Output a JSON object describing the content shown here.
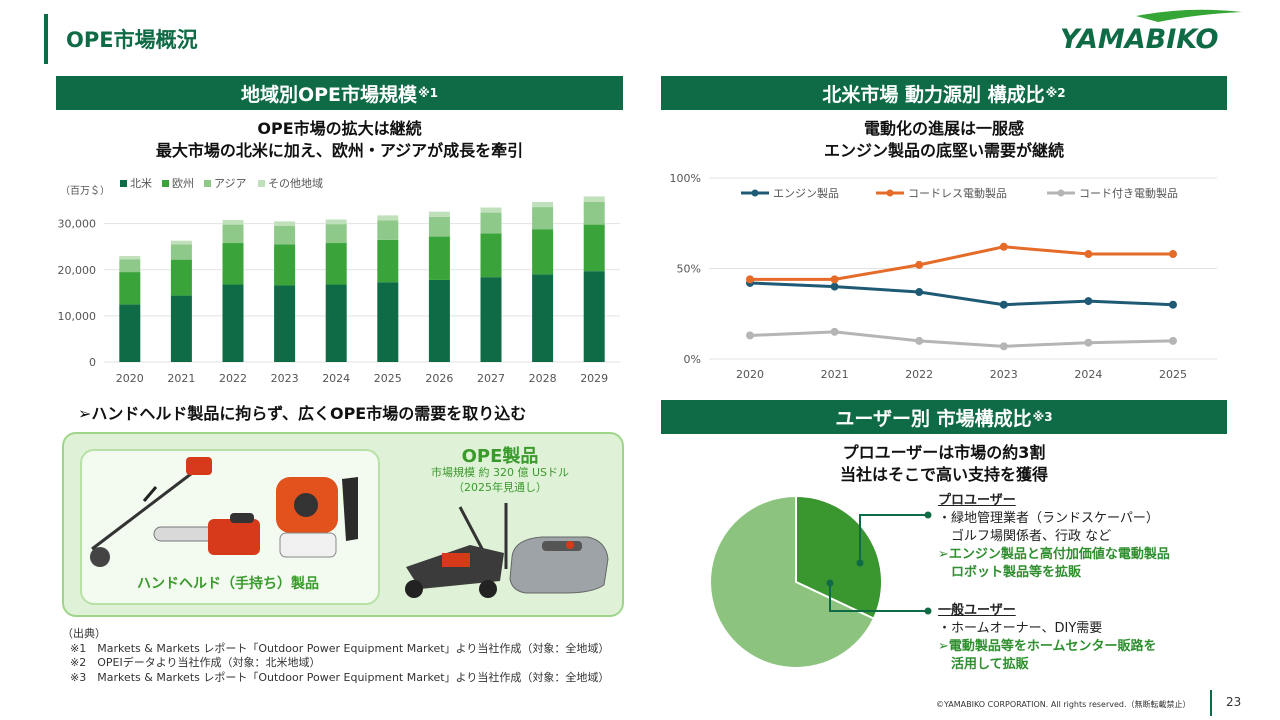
{
  "page": {
    "title": "OPE市場概況",
    "logo_text": "YAMABIKO",
    "number": "23",
    "copyright": "©YAMABIKO CORPORATION. All rights reserved.（無断転載禁止）"
  },
  "colors": {
    "brand_green": "#0e6b45",
    "na": "#0e6b45",
    "europe": "#3aa33a",
    "asia": "#8fc98a",
    "other": "#bfe0bb",
    "engine": "#1f5a75",
    "cordless": "#e46b28",
    "corded": "#b5b5b5"
  },
  "left_panel": {
    "header": "地域別OPE市場規模",
    "header_note": "※1",
    "headline_1": "OPE市場の拡大は継続",
    "headline_2": "最大市場の北米に加え、欧州・アジアが成長を牽引",
    "unit_label": "（百万＄）",
    "catch": "➢ハンドヘルド製品に拘らず、広くOPE市場の需要を取り込む",
    "ope_title": "OPE製品",
    "ope_sub_1": "市場規模 約 320 億 USドル",
    "ope_sub_2": "（2025年見通し）",
    "handheld_label": "ハンドヘルド（手持ち）製品"
  },
  "sources": {
    "heading": "（出典）",
    "lines": [
      "※1　Markets & Markets レポート「Outdoor Power Equipment Market」より当社作成（対象：全地域）",
      "※2　OPEIデータより当社作成（対象：北米地域）",
      "※3　Markets & Markets レポート「Outdoor Power Equipment Market」より当社作成（対象：全地域）"
    ]
  },
  "right_top": {
    "header": "北米市場 動力源別 構成比",
    "header_note": "※2",
    "headline_1": "電動化の進展は一服感",
    "headline_2": "エンジン製品の底堅い需要が継続"
  },
  "right_bottom": {
    "header": "ユーザー別 市場構成比",
    "header_note": "※3",
    "headline_1": "プロユーザーは市場の約3割",
    "headline_2": "当社はそこで高い支持を獲得",
    "pro": {
      "title": "プロユーザー",
      "item_1": "・緑地管理業者（ランドスケーパー）",
      "item_2": "　ゴルフ場関係者、行政 など",
      "strat_1": "➢エンジン製品と高付加価値な電動製品",
      "strat_2": "　ロボット製品等を拡販"
    },
    "general": {
      "title": "一般ユーザー",
      "item_1": "・ホームオーナー、DIY需要",
      "strat_1": "➢電動製品等をホームセンター販路を",
      "strat_2": "　活用して拡販"
    }
  },
  "chart_data": [
    {
      "type": "bar",
      "stacked": true,
      "title": "",
      "categories": [
        "2020",
        "2021",
        "2022",
        "2023",
        "2024",
        "2025",
        "2026",
        "2027",
        "2028",
        "2029"
      ],
      "series": [
        {
          "name": "北米",
          "values": [
            12500,
            14400,
            16800,
            16600,
            16800,
            17300,
            17800,
            18400,
            19000,
            19700
          ]
        },
        {
          "name": "欧州",
          "values": [
            7000,
            7800,
            9000,
            8900,
            9000,
            9200,
            9400,
            9500,
            9800,
            10100
          ]
        },
        {
          "name": "アジア",
          "values": [
            2800,
            3300,
            4000,
            4000,
            4100,
            4200,
            4300,
            4500,
            4800,
            4900
          ]
        },
        {
          "name": "その他地域",
          "values": [
            700,
            800,
            1000,
            1000,
            1000,
            1100,
            1100,
            1100,
            1100,
            1200
          ]
        }
      ],
      "yticks": [
        "0",
        "10,000",
        "20,000",
        "30,000"
      ],
      "ylim": [
        0,
        36000
      ],
      "legend": "top-left",
      "grid": true
    },
    {
      "type": "line",
      "title": "",
      "x": [
        "2020",
        "2021",
        "2022",
        "2023",
        "2024",
        "2025"
      ],
      "series": [
        {
          "name": "エンジン製品",
          "values": [
            42,
            40,
            37,
            30,
            32,
            30
          ]
        },
        {
          "name": "コードレス電動製品",
          "values": [
            44,
            44,
            52,
            62,
            58,
            58
          ]
        },
        {
          "name": "コード付き電動製品",
          "values": [
            13,
            15,
            10,
            7,
            9,
            10
          ]
        }
      ],
      "yticks": [
        "0%",
        "50%",
        "100%"
      ],
      "ylim": [
        0,
        100
      ],
      "legend": "top",
      "grid": true
    },
    {
      "type": "pie",
      "title": "",
      "slices": [
        {
          "label": "プロユーザー",
          "value": 32
        },
        {
          "label": "一般ユーザー",
          "value": 68
        }
      ]
    }
  ]
}
